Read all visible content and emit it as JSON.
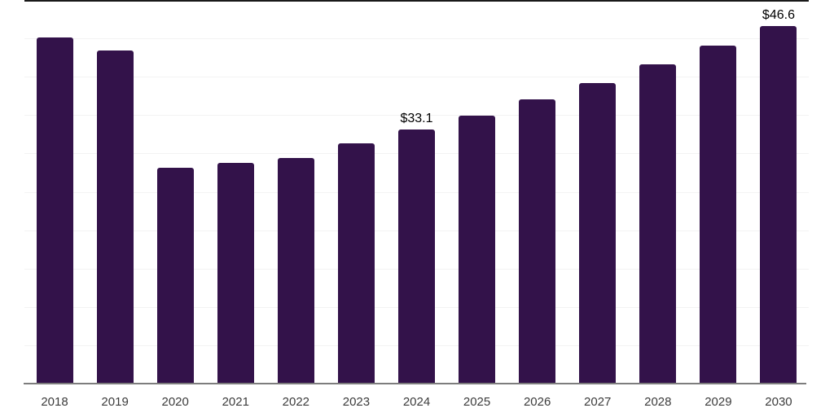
{
  "chart_data": {
    "type": "bar",
    "title": "",
    "xlabel": "",
    "ylabel": "",
    "categories": [
      "2018",
      "2019",
      "2020",
      "2021",
      "2022",
      "2023",
      "2024",
      "2025",
      "2026",
      "2027",
      "2028",
      "2029",
      "2030"
    ],
    "values": [
      45.1,
      43.4,
      28.1,
      28.8,
      29.4,
      31.3,
      33.1,
      34.9,
      37.0,
      39.2,
      41.6,
      44.1,
      46.6
    ],
    "value_labels": [
      "",
      "",
      "",
      "",
      "",
      "",
      "$33.1",
      "",
      "",
      "",
      "",
      "",
      "$46.6"
    ],
    "ylim": [
      0,
      50
    ],
    "grid": {
      "visible": true,
      "step": 5
    },
    "legend": {
      "visible": false
    },
    "colors": {
      "bar": "#33124a",
      "gridline": "#f3f3f3",
      "top_border": "#191919",
      "axis_line": "#7d7d7d",
      "tick_label": "#3c3c3c",
      "value_label": "#000000",
      "background": "#ffffff"
    }
  }
}
